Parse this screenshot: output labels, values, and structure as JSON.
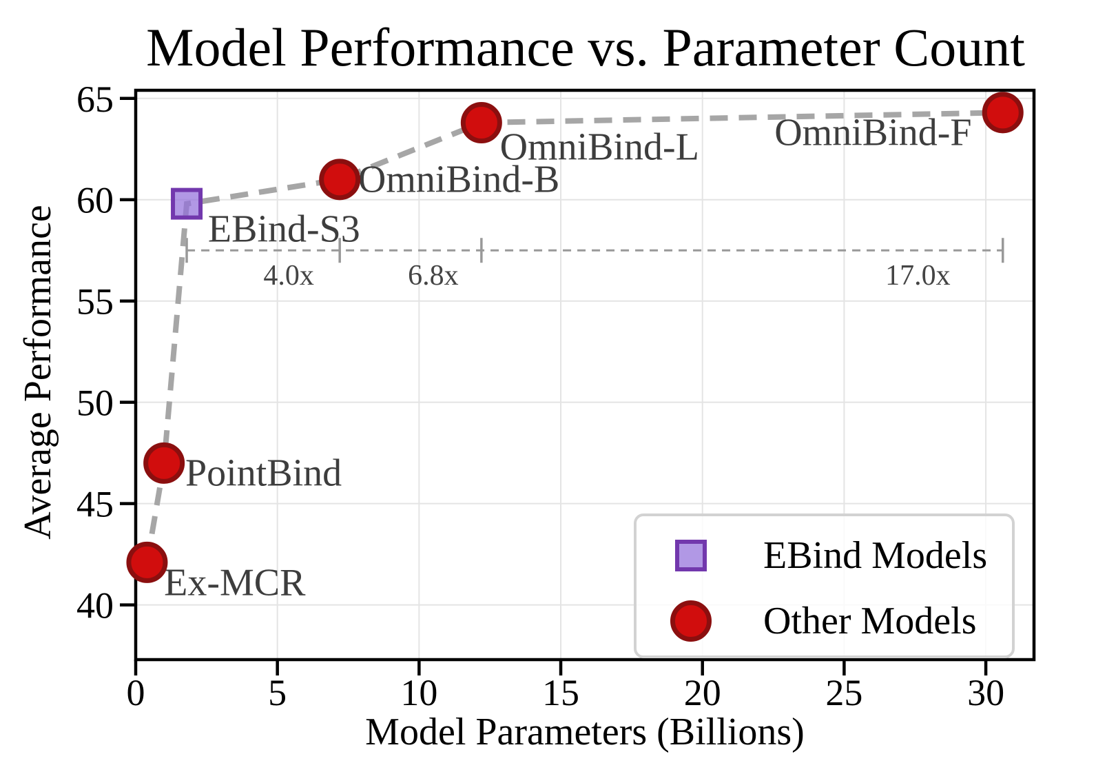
{
  "chart_data": {
    "type": "scatter",
    "title": "Model Performance vs. Parameter Count",
    "xlabel": "Model Parameters (Billions)",
    "ylabel": "Average Performance",
    "xlim": [
      0,
      31.7
    ],
    "ylim": [
      37.3,
      65.4
    ],
    "grid": true,
    "xticks": [
      0,
      5,
      10,
      15,
      20,
      25,
      30
    ],
    "yticks": [
      40,
      45,
      50,
      55,
      60,
      65
    ],
    "series": [
      {
        "name": "EBind Models",
        "marker": "square",
        "fill": "#9370DB",
        "fill_opacity": 0.72,
        "edge": "#7238ad",
        "points": [
          {
            "label": "EBind-S3",
            "x": 1.8,
            "y": 59.8,
            "label_x": 2.55,
            "label_y": 58.55,
            "label_anchor": "start"
          }
        ]
      },
      {
        "name": "Other Models",
        "marker": "circle",
        "fill": "#d10d0d",
        "fill_opacity": 1,
        "edge": "#8b0f0f",
        "points": [
          {
            "label": "Ex-MCR",
            "x": 0.4,
            "y": 42.1,
            "label_x": 1.0,
            "label_y": 41.1,
            "label_anchor": "start"
          },
          {
            "label": "PointBind",
            "x": 1.0,
            "y": 47.0,
            "label_x": 1.75,
            "label_y": 46.5,
            "label_anchor": "start"
          },
          {
            "label": "OmniBind-B",
            "x": 7.2,
            "y": 61.0,
            "label_x": 7.85,
            "label_y": 61.0,
            "label_anchor": "start"
          },
          {
            "label": "OmniBind-L",
            "x": 12.2,
            "y": 63.8,
            "label_x": 12.85,
            "label_y": 62.6,
            "label_anchor": "start"
          },
          {
            "label": "OmniBind-F",
            "x": 30.6,
            "y": 64.3,
            "label_x": 29.5,
            "label_y": 63.3,
            "label_anchor": "end"
          }
        ]
      }
    ],
    "trend_line": {
      "color": "#a6a6a6",
      "width": 8,
      "dash": "26 16",
      "points": [
        [
          0.4,
          42.1
        ],
        [
          1.0,
          47.0
        ],
        [
          1.8,
          59.8
        ],
        [
          7.2,
          61.0
        ],
        [
          12.2,
          63.8
        ],
        [
          30.6,
          64.3
        ]
      ]
    },
    "annotation": {
      "y": 57.5,
      "x_start": 1.8,
      "x_end": 30.6,
      "cap_x": [
        1.8,
        7.2,
        12.2,
        30.6
      ],
      "color": "#999999",
      "labels": [
        {
          "text": "4.0x",
          "x": 5.4,
          "y": 56.25
        },
        {
          "text": "6.8x",
          "x": 10.5,
          "y": 56.25
        },
        {
          "text": "17.0x",
          "x": 27.6,
          "y": 56.25
        }
      ]
    },
    "legend": {
      "position": "lower right",
      "entries": [
        {
          "label": "EBind Models",
          "marker": "square"
        },
        {
          "label": "Other Models",
          "marker": "circle"
        }
      ]
    }
  },
  "style": {
    "background": "#ffffff",
    "grid_color": "#e4e4e4",
    "spine_color": "#000000",
    "tick_label_color": "#000000",
    "point_label_color": "#3d3d3d",
    "annotation_text_color": "#444444",
    "legend_border_color": "#d2d2d2"
  }
}
